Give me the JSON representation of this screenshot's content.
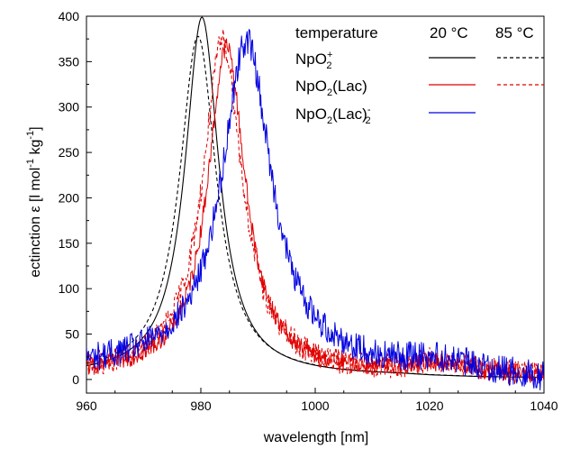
{
  "chart_data": {
    "type": "line",
    "title": "",
    "xlabel": "wavelength [nm]",
    "ylabel": {
      "prefix": "ectinction ε [l mol",
      "sup1": "-1",
      "mid": " kg",
      "sup2": "-1",
      "suffix": "]"
    },
    "xlim": [
      960,
      1040
    ],
    "ylim": [
      -15,
      400
    ],
    "xticks": [
      960,
      980,
      1000,
      1020,
      1040
    ],
    "yticks": [
      0,
      50,
      100,
      150,
      200,
      250,
      300,
      350,
      400
    ],
    "grid": false,
    "legend": {
      "position": "top-right",
      "header": "temperature",
      "columns": [
        "20 °C",
        "85 °C"
      ],
      "entries": [
        {
          "base": "NpO",
          "sub": "2",
          "sup": "+",
          "tail": ""
        },
        {
          "base": "NpO",
          "sub": "2",
          "sup": "",
          "tail": "(Lac)"
        },
        {
          "base": "NpO",
          "sub": "2",
          "sup": "",
          "tail": "(Lac)",
          "sub2": "2",
          "sup2": "-"
        }
      ]
    },
    "series": [
      {
        "name": "NpO2+ 20 °C",
        "color": "#000000",
        "dash": "solid",
        "peak_x": 980.2,
        "peak_y": 396,
        "fwhm": 7.2,
        "noise": 0,
        "tail": [
          [
            1015,
            3
          ],
          [
            1020,
            2
          ],
          [
            1030,
            1
          ],
          [
            1040,
            1
          ]
        ]
      },
      {
        "name": "NpO2+ 85 °C",
        "color": "#000000",
        "dash": "dashed",
        "peak_x": 979.5,
        "peak_y": 375,
        "fwhm": 7.8,
        "noise": 0,
        "tail": [
          [
            1015,
            3
          ],
          [
            1020,
            2
          ],
          [
            1030,
            1
          ],
          [
            1040,
            1
          ]
        ]
      },
      {
        "name": "NpO2(Lac) 20 °C",
        "color": "#e00000",
        "dash": "solid",
        "peak_x": 984.5,
        "peak_y": 362,
        "fwhm": 8.0,
        "noise": 10,
        "tail": [
          [
            1005,
            5
          ],
          [
            1015,
            8
          ],
          [
            1020,
            15
          ],
          [
            1025,
            14
          ],
          [
            1030,
            8
          ],
          [
            1040,
            3
          ]
        ]
      },
      {
        "name": "NpO2(Lac) 85 °C",
        "color": "#e00000",
        "dash": "dashed",
        "peak_x": 983.8,
        "peak_y": 368,
        "fwhm": 8.4,
        "noise": 14,
        "tail": [
          [
            1005,
            5
          ],
          [
            1015,
            8
          ],
          [
            1020,
            18
          ],
          [
            1025,
            15
          ],
          [
            1030,
            8
          ],
          [
            1040,
            3
          ]
        ]
      },
      {
        "name": "NpO2(Lac)2- 20 °C",
        "color": "#0000e0",
        "dash": "solid",
        "peak_x": 988.0,
        "peak_y": 362,
        "fwhm": 10.5,
        "noise": 16,
        "tail": [
          [
            1005,
            12
          ],
          [
            1012,
            10
          ],
          [
            1020,
            18
          ],
          [
            1025,
            14
          ],
          [
            1030,
            8
          ],
          [
            1040,
            0
          ]
        ]
      }
    ]
  }
}
